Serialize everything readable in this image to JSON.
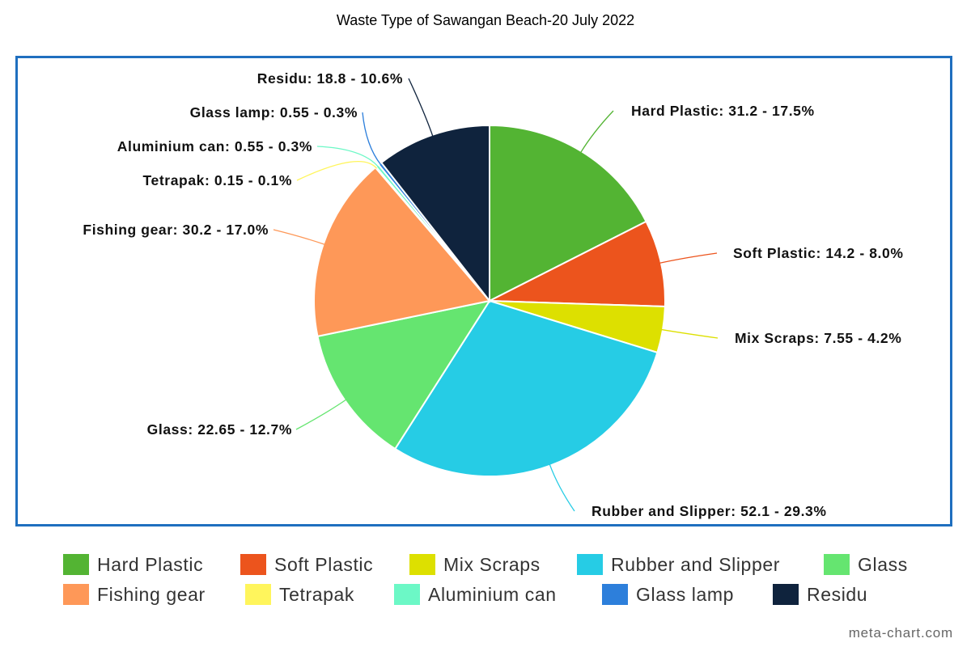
{
  "chart_data": {
    "type": "pie",
    "title": "Waste Type of Sawangan Beach-20 July 2022",
    "slices": [
      {
        "name": "Hard Plastic",
        "value": 31.2,
        "percent": "17.5%",
        "label": "Hard Plastic: 31.2 - 17.5%",
        "color": "#53b433"
      },
      {
        "name": "Soft Plastic",
        "value": 14.2,
        "percent": "8.0%",
        "label": "Soft Plastic: 14.2 - 8.0%",
        "color": "#ec541d"
      },
      {
        "name": "Mix Scraps",
        "value": 7.55,
        "percent": "4.2%",
        "label": "Mix Scraps: 7.55 - 4.2%",
        "color": "#dde000"
      },
      {
        "name": "Rubber and Slipper",
        "value": 52.1,
        "percent": "29.3%",
        "label": "Rubber and Slipper: 52.1 - 29.3%",
        "color": "#26cce5"
      },
      {
        "name": "Glass",
        "value": 22.65,
        "percent": "12.7%",
        "label": "Glass: 22.65 - 12.7%",
        "color": "#65e570"
      },
      {
        "name": "Fishing gear",
        "value": 30.2,
        "percent": "17.0%",
        "label": "Fishing gear: 30.2 - 17.0%",
        "color": "#fe9858"
      },
      {
        "name": "Tetrapak",
        "value": 0.15,
        "percent": "0.1%",
        "label": "Tetrapak: 0.15 - 0.1%",
        "color": "#fff55c"
      },
      {
        "name": "Aluminium can",
        "value": 0.55,
        "percent": "0.3%",
        "label": "Aluminium can: 0.55 - 0.3%",
        "color": "#6cf8c6"
      },
      {
        "name": "Glass lamp",
        "value": 0.55,
        "percent": "0.3%",
        "label": "Glass lamp: 0.55 - 0.3%",
        "color": "#2d7fdb"
      },
      {
        "name": "Residu",
        "value": 18.8,
        "percent": "10.6%",
        "label": "Residu: 18.8 - 10.6%",
        "color": "#0f233d"
      }
    ],
    "legend_position": "bottom"
  },
  "watermark": "meta-chart.com"
}
